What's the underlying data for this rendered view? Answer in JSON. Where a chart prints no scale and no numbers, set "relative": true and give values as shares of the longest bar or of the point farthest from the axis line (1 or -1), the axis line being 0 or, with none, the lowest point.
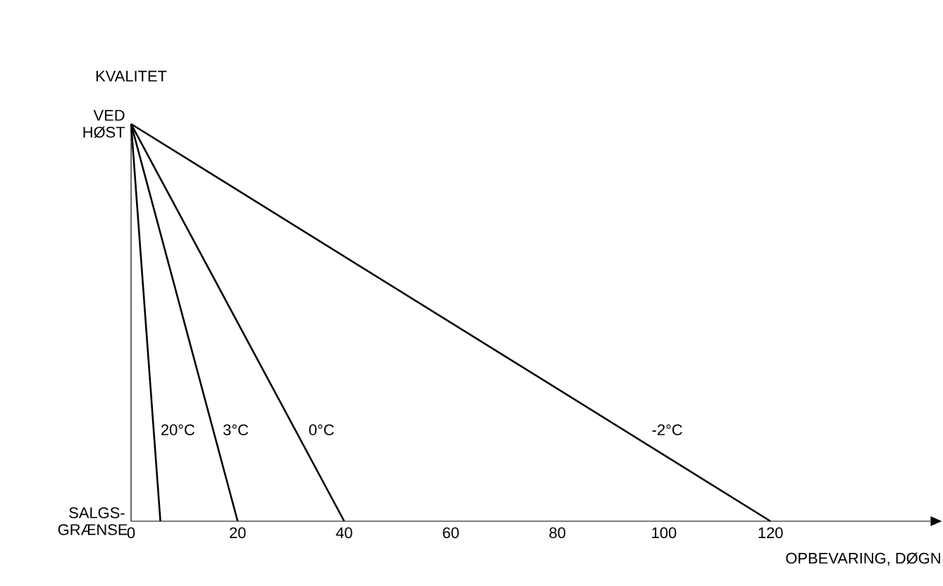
{
  "chart_data": {
    "type": "line",
    "xlabel": "OPBEVARING, DØGN",
    "ylabel": "KVALITET",
    "xlim": [
      0,
      150
    ],
    "xticks": [
      0,
      20,
      40,
      60,
      80,
      100,
      120
    ],
    "relative": true,
    "annotations": [
      "VED HØST",
      "SALGS-GRÆNSE"
    ],
    "series": [
      {
        "name": "20°C",
        "color": "#000000",
        "x": [
          0,
          5.5
        ],
        "values": [
          1,
          0
        ]
      },
      {
        "name": "3°C",
        "color": "#000000",
        "x": [
          0,
          20
        ],
        "values": [
          1,
          0
        ]
      },
      {
        "name": "0°C",
        "color": "#000000",
        "x": [
          0,
          40
        ],
        "values": [
          1,
          0
        ]
      },
      {
        "name": "-2°C",
        "color": "#000000",
        "x": [
          0,
          120
        ],
        "values": [
          1,
          0
        ]
      }
    ]
  }
}
